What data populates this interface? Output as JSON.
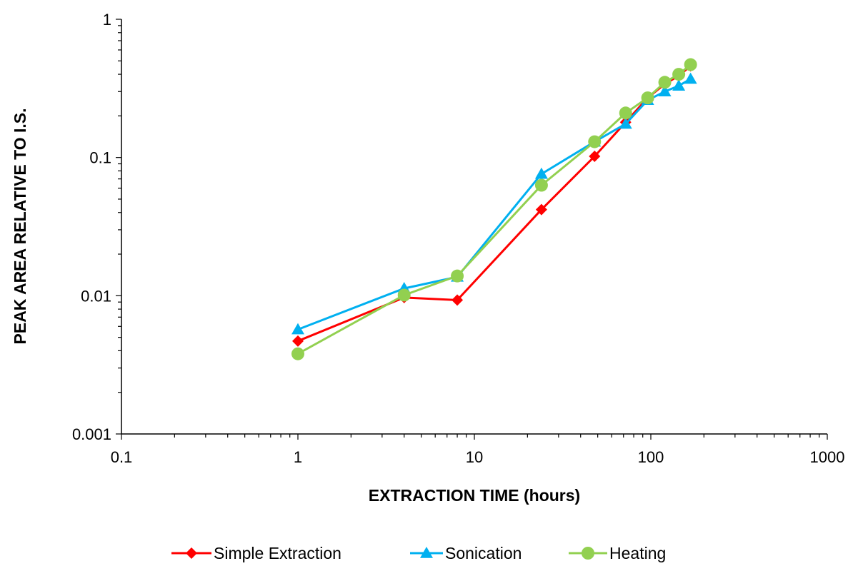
{
  "chart_data": {
    "type": "line",
    "title": "",
    "xlabel": "EXTRACTION TIME (hours)",
    "ylabel": "PEAK AREA RELATIVE TO I.S.",
    "x_scale": "log",
    "y_scale": "log",
    "xlim": [
      0.1,
      1000
    ],
    "ylim": [
      0.001,
      1
    ],
    "x_ticks": [
      0.1,
      1,
      10,
      100,
      1000
    ],
    "y_ticks": [
      0.001,
      0.01,
      0.1,
      1
    ],
    "x_tick_labels": [
      "0.1",
      "1",
      "10",
      "100",
      "1000"
    ],
    "y_tick_labels": [
      "0.001",
      "0.01",
      "0.1",
      "1"
    ],
    "grid": false,
    "legend_position": "bottom",
    "series": [
      {
        "name": "Simple Extraction",
        "color": "#ff0000",
        "marker": "diamond",
        "x": [
          1,
          4,
          8,
          24,
          48,
          72,
          96,
          120,
          144,
          168
        ],
        "y": [
          0.0047,
          0.0097,
          0.0093,
          0.042,
          0.102,
          0.18,
          0.27,
          0.34,
          0.39,
          0.46
        ]
      },
      {
        "name": "Sonication",
        "color": "#00b0f0",
        "marker": "triangle",
        "x": [
          1,
          4,
          8,
          24,
          48,
          72,
          96,
          120,
          144,
          168
        ],
        "y": [
          0.0057,
          0.0113,
          0.0137,
          0.076,
          0.13,
          0.175,
          0.26,
          0.3,
          0.33,
          0.37
        ]
      },
      {
        "name": "Heating",
        "color": "#92d050",
        "marker": "circle",
        "x": [
          1,
          4,
          8,
          24,
          48,
          72,
          96,
          120,
          144,
          168
        ],
        "y": [
          0.0038,
          0.0101,
          0.0139,
          0.063,
          0.13,
          0.21,
          0.27,
          0.35,
          0.4,
          0.47
        ]
      }
    ]
  }
}
